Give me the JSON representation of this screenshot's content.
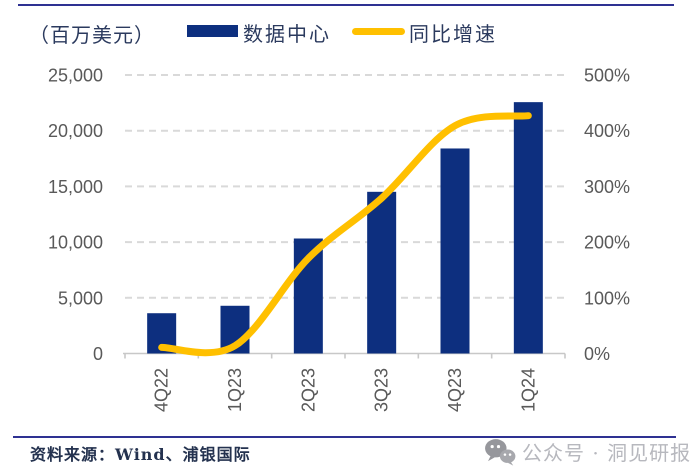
{
  "header": {
    "unit_label": "（百万美元）",
    "legend": [
      {
        "label": "数据中心",
        "type": "bar",
        "color": "#0d2f7f"
      },
      {
        "label": "同比增速",
        "type": "line",
        "color": "#ffc000"
      }
    ]
  },
  "chart_data": {
    "type": "combo",
    "categories": [
      "4Q22",
      "1Q23",
      "2Q23",
      "3Q23",
      "4Q23",
      "1Q24"
    ],
    "series": [
      {
        "name": "数据中心",
        "type": "bar",
        "axis": "left",
        "unit": "百万美元",
        "values": [
          3616,
          4284,
          10323,
          14514,
          18404,
          22563
        ]
      },
      {
        "name": "同比增速",
        "type": "line",
        "axis": "right",
        "unit": "%",
        "values": [
          11,
          14,
          171,
          279,
          409,
          427
        ]
      }
    ],
    "left_axis": {
      "min": 0,
      "max": 25000,
      "ticks": [
        "0",
        "5,000",
        "10,000",
        "15,000",
        "20,000",
        "25,000"
      ]
    },
    "right_axis": {
      "min": 0,
      "max": 500,
      "ticks": [
        "0%",
        "100%",
        "200%",
        "300%",
        "400%",
        "500%"
      ]
    },
    "grid": "horizontal-dashed",
    "legend_position": "top",
    "colors": {
      "bar": "#0d2f7f",
      "line": "#ffc000",
      "grid": "#d9d9d9",
      "axis": "#c8c8c8",
      "tick_text": "#595959"
    }
  },
  "footer": {
    "source": "资料来源：Wind、浦银国际",
    "watermark": {
      "icon": "wechat-icon",
      "text": "公众号 · 洞见研报"
    }
  }
}
